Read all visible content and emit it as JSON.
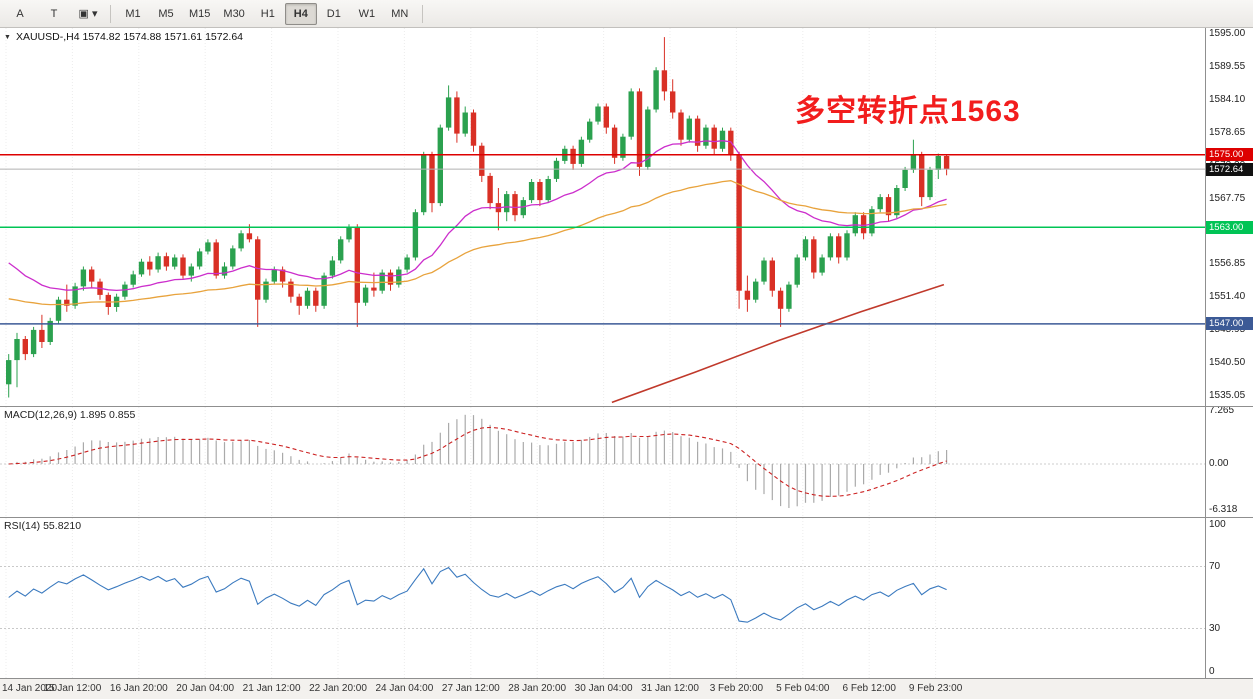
{
  "toolbar": {
    "tool_buttons": [
      {
        "label": "A",
        "name": "pointer-tool"
      },
      {
        "label": "T",
        "name": "text-tool"
      },
      {
        "label": "▣",
        "name": "objects-tool",
        "dropdown": true
      }
    ],
    "timeframes": [
      "M1",
      "M5",
      "M15",
      "M30",
      "H1",
      "H4",
      "D1",
      "W1",
      "MN"
    ],
    "active_timeframe": "H4"
  },
  "chart": {
    "symbol_info": "XAUUSD-,H4  1574.82 1574.88 1571.61 1572.64",
    "annotation": {
      "text": "多空转折点1563",
      "color": "#f21d1d"
    },
    "price_axis_labels": [
      "1595.00",
      "1589.55",
      "1584.10",
      "1578.65",
      "1573.20",
      "1567.75",
      "1562.30",
      "1556.85",
      "1551.40",
      "1545.95",
      "1540.50",
      "1535.05"
    ],
    "hlines": [
      {
        "price": 1575.0,
        "label": "1575.00",
        "color": "#dd0000"
      },
      {
        "price": 1563.0,
        "label": "1563.00",
        "color": "#00c455"
      },
      {
        "price": 1547.0,
        "label": "1547.00",
        "color": "#3c5a96"
      }
    ],
    "current_price": {
      "value": 1572.64,
      "label": "1572.64"
    },
    "scale": {
      "top_price": 1596.0,
      "bottom_price": 1533.4
    }
  },
  "macd": {
    "label": "MACD(12,26,9) 1.895 0.855",
    "axis_labels": [
      "7.265",
      "0.00",
      "-6.318"
    ],
    "scale": {
      "max": 7.265,
      "min": -6.318
    }
  },
  "rsi": {
    "label": "RSI(14) 55.8210",
    "axis_labels": [
      "100",
      "70",
      "30",
      "0"
    ],
    "levels": [
      70,
      30
    ]
  },
  "time_axis": [
    "14 Jan 2020",
    "15 Jan 12:00",
    "16 Jan 20:00",
    "20 Jan 04:00",
    "21 Jan 12:00",
    "22 Jan 20:00",
    "24 Jan 04:00",
    "27 Jan 12:00",
    "28 Jan 20:00",
    "30 Jan 04:00",
    "31 Jan 12:00",
    "3 Feb 20:00",
    "5 Feb 04:00",
    "6 Feb 12:00",
    "9 Feb 23:00"
  ],
  "chart_data": {
    "type": "candlestick",
    "symbol": "XAUUSD",
    "timeframe": "H4",
    "title": "XAUUSD-,H4",
    "ylim": [
      1535.05,
      1595.0
    ],
    "colors": {
      "bull": "#2ba14f",
      "bear": "#d93025"
    },
    "ohlc": [
      [
        1537.0,
        1542.0,
        1534.8,
        1541.0
      ],
      [
        1541.0,
        1545.5,
        1536.5,
        1544.5
      ],
      [
        1544.5,
        1545.0,
        1541.0,
        1542.0
      ],
      [
        1542.0,
        1546.5,
        1541.5,
        1546.0
      ],
      [
        1546.0,
        1548.5,
        1543.0,
        1544.0
      ],
      [
        1544.0,
        1548.0,
        1543.5,
        1547.5
      ],
      [
        1547.5,
        1551.5,
        1547.0,
        1551.0
      ],
      [
        1551.0,
        1553.5,
        1549.0,
        1550.0
      ],
      [
        1550.0,
        1553.8,
        1549.5,
        1553.2
      ],
      [
        1553.2,
        1556.5,
        1552.5,
        1556.0
      ],
      [
        1556.0,
        1556.5,
        1553.0,
        1554.0
      ],
      [
        1554.0,
        1554.5,
        1551.0,
        1551.8
      ],
      [
        1551.8,
        1552.2,
        1548.5,
        1549.8
      ],
      [
        1549.8,
        1552.0,
        1549.0,
        1551.5
      ],
      [
        1551.5,
        1554.0,
        1551.0,
        1553.5
      ],
      [
        1553.5,
        1555.8,
        1553.0,
        1555.2
      ],
      [
        1555.2,
        1557.8,
        1554.8,
        1557.3
      ],
      [
        1557.3,
        1558.2,
        1555.0,
        1556.0
      ],
      [
        1556.0,
        1558.8,
        1555.5,
        1558.2
      ],
      [
        1558.2,
        1558.8,
        1555.8,
        1556.5
      ],
      [
        1556.5,
        1558.5,
        1556.0,
        1558.0
      ],
      [
        1558.0,
        1558.5,
        1554.5,
        1555.0
      ],
      [
        1555.0,
        1557.0,
        1554.0,
        1556.5
      ],
      [
        1556.5,
        1559.5,
        1556.0,
        1559.0
      ],
      [
        1559.0,
        1561.0,
        1558.5,
        1560.5
      ],
      [
        1560.5,
        1561.0,
        1554.5,
        1555.0
      ],
      [
        1555.0,
        1557.2,
        1554.5,
        1556.5
      ],
      [
        1556.5,
        1560.0,
        1556.0,
        1559.5
      ],
      [
        1559.5,
        1562.5,
        1559.0,
        1562.0
      ],
      [
        1562.0,
        1563.5,
        1560.5,
        1561.0
      ],
      [
        1561.0,
        1561.5,
        1546.5,
        1551.0
      ],
      [
        1551.0,
        1554.5,
        1550.5,
        1554.0
      ],
      [
        1554.0,
        1556.5,
        1553.5,
        1556.0
      ],
      [
        1556.0,
        1556.5,
        1553.0,
        1554.0
      ],
      [
        1554.0,
        1554.5,
        1550.5,
        1551.5
      ],
      [
        1551.5,
        1552.0,
        1548.5,
        1550.0
      ],
      [
        1550.0,
        1553.0,
        1549.5,
        1552.5
      ],
      [
        1552.5,
        1553.0,
        1549.0,
        1550.0
      ],
      [
        1550.0,
        1555.5,
        1549.5,
        1555.0
      ],
      [
        1555.0,
        1558.2,
        1554.5,
        1557.5
      ],
      [
        1557.5,
        1561.5,
        1557.0,
        1561.0
      ],
      [
        1561.0,
        1563.5,
        1560.5,
        1563.0
      ],
      [
        1563.0,
        1563.5,
        1546.5,
        1550.5
      ],
      [
        1550.5,
        1553.5,
        1550.0,
        1553.0
      ],
      [
        1553.0,
        1555.5,
        1551.5,
        1552.5
      ],
      [
        1552.5,
        1556.0,
        1552.0,
        1555.5
      ],
      [
        1555.5,
        1556.0,
        1552.5,
        1553.5
      ],
      [
        1553.5,
        1556.5,
        1553.0,
        1556.0
      ],
      [
        1556.0,
        1558.5,
        1555.5,
        1558.0
      ],
      [
        1558.0,
        1566.0,
        1557.5,
        1565.5
      ],
      [
        1565.5,
        1575.5,
        1565.0,
        1575.0
      ],
      [
        1575.0,
        1575.5,
        1565.5,
        1567.0
      ],
      [
        1567.0,
        1580.0,
        1566.5,
        1579.5
      ],
      [
        1579.5,
        1586.5,
        1579.0,
        1584.5
      ],
      [
        1584.5,
        1585.5,
        1577.0,
        1578.5
      ],
      [
        1578.5,
        1583.0,
        1578.0,
        1582.0
      ],
      [
        1582.0,
        1582.5,
        1575.5,
        1576.5
      ],
      [
        1576.5,
        1577.0,
        1570.5,
        1571.5
      ],
      [
        1571.5,
        1572.0,
        1566.0,
        1567.0
      ],
      [
        1567.0,
        1569.5,
        1562.5,
        1565.5
      ],
      [
        1565.5,
        1569.0,
        1564.0,
        1568.5
      ],
      [
        1568.5,
        1569.0,
        1564.0,
        1565.0
      ],
      [
        1565.0,
        1568.0,
        1564.5,
        1567.5
      ],
      [
        1567.5,
        1571.0,
        1567.0,
        1570.5
      ],
      [
        1570.5,
        1571.0,
        1566.5,
        1567.5
      ],
      [
        1567.5,
        1571.5,
        1567.0,
        1571.0
      ],
      [
        1571.0,
        1574.5,
        1570.5,
        1574.0
      ],
      [
        1574.0,
        1576.5,
        1573.5,
        1576.0
      ],
      [
        1576.0,
        1576.5,
        1572.5,
        1573.5
      ],
      [
        1573.5,
        1578.0,
        1573.0,
        1577.5
      ],
      [
        1577.5,
        1581.0,
        1577.0,
        1580.5
      ],
      [
        1580.5,
        1583.5,
        1580.0,
        1583.0
      ],
      [
        1583.0,
        1583.5,
        1578.5,
        1579.5
      ],
      [
        1579.5,
        1580.0,
        1573.5,
        1574.5
      ],
      [
        1574.5,
        1578.5,
        1574.0,
        1578.0
      ],
      [
        1578.0,
        1586.0,
        1577.5,
        1585.5
      ],
      [
        1585.5,
        1586.0,
        1571.5,
        1573.0
      ],
      [
        1573.0,
        1583.0,
        1572.5,
        1582.5
      ],
      [
        1582.5,
        1589.5,
        1582.0,
        1589.0
      ],
      [
        1589.0,
        1594.5,
        1584.0,
        1585.5
      ],
      [
        1585.5,
        1587.5,
        1581.0,
        1582.0
      ],
      [
        1582.0,
        1582.5,
        1576.5,
        1577.5
      ],
      [
        1577.5,
        1581.5,
        1577.0,
        1581.0
      ],
      [
        1581.0,
        1581.5,
        1575.5,
        1576.5
      ],
      [
        1576.5,
        1580.0,
        1576.0,
        1579.5
      ],
      [
        1579.5,
        1580.0,
        1575.0,
        1576.0
      ],
      [
        1576.0,
        1579.5,
        1575.5,
        1579.0
      ],
      [
        1579.0,
        1579.5,
        1574.0,
        1575.0
      ],
      [
        1575.0,
        1575.5,
        1549.5,
        1552.5
      ],
      [
        1552.5,
        1555.0,
        1549.0,
        1551.0
      ],
      [
        1551.0,
        1554.5,
        1550.5,
        1554.0
      ],
      [
        1554.0,
        1558.0,
        1553.5,
        1557.5
      ],
      [
        1557.5,
        1558.0,
        1551.5,
        1552.5
      ],
      [
        1552.5,
        1553.0,
        1546.5,
        1549.5
      ],
      [
        1549.5,
        1554.0,
        1549.0,
        1553.5
      ],
      [
        1553.5,
        1558.5,
        1553.0,
        1558.0
      ],
      [
        1558.0,
        1561.5,
        1557.5,
        1561.0
      ],
      [
        1561.0,
        1561.5,
        1554.5,
        1555.5
      ],
      [
        1555.5,
        1558.5,
        1555.0,
        1558.0
      ],
      [
        1558.0,
        1562.0,
        1557.5,
        1561.5
      ],
      [
        1561.5,
        1562.0,
        1557.0,
        1558.0
      ],
      [
        1558.0,
        1562.5,
        1557.5,
        1562.0
      ],
      [
        1562.0,
        1565.5,
        1561.5,
        1565.0
      ],
      [
        1565.0,
        1565.5,
        1561.0,
        1562.0
      ],
      [
        1562.0,
        1566.5,
        1561.5,
        1566.0
      ],
      [
        1566.0,
        1568.5,
        1565.5,
        1568.0
      ],
      [
        1568.0,
        1568.5,
        1564.0,
        1565.0
      ],
      [
        1565.0,
        1570.0,
        1564.5,
        1569.5
      ],
      [
        1569.5,
        1573.0,
        1569.0,
        1572.5
      ],
      [
        1572.5,
        1577.5,
        1572.0,
        1575.0
      ],
      [
        1575.0,
        1575.5,
        1566.5,
        1568.0
      ],
      [
        1568.0,
        1573.0,
        1567.5,
        1572.5
      ],
      [
        1572.5,
        1575.2,
        1571.0,
        1574.8
      ],
      [
        1574.8,
        1574.9,
        1571.6,
        1572.6
      ]
    ],
    "overlays": {
      "ma_fast": {
        "color": "#cc2ecc",
        "period": 24,
        "seed": 1558.5
      },
      "ma_slow": {
        "color": "#e8a33d",
        "period": 60,
        "seed": 1551.5
      },
      "trend_line": {
        "color": "#c0392b",
        "points": [
          [
            73,
            1534.0
          ],
          [
            83,
            1539.0
          ],
          [
            93,
            1544.2
          ],
          [
            103,
            1549.0
          ],
          [
            113,
            1553.5
          ]
        ]
      }
    }
  }
}
